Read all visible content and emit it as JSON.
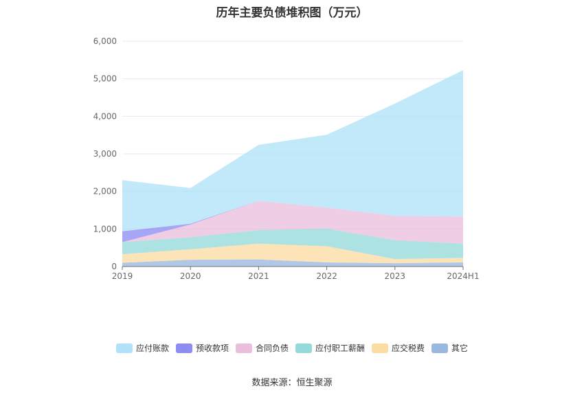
{
  "chart_data": {
    "type": "area",
    "title": "历年主要负债堆积图（万元）",
    "categories": [
      "2019",
      "2020",
      "2021",
      "2022",
      "2023",
      "2024H1"
    ],
    "ylim": [
      0,
      6000
    ],
    "yticks": [
      "0",
      "1,000",
      "2,000",
      "3,000",
      "4,000",
      "5,000",
      "6,000"
    ],
    "grid": true,
    "stacked": true,
    "legend_position": "bottom",
    "series": [
      {
        "name": "其它",
        "color": "#8fb0dc",
        "values": [
          100,
          180,
          190,
          110,
          90,
          110
        ]
      },
      {
        "name": "应交税费",
        "color": "#fbd99a",
        "values": [
          230,
          280,
          420,
          430,
          110,
          120
        ]
      },
      {
        "name": "应付职工薪酬",
        "color": "#8ad6d6",
        "values": [
          320,
          320,
          360,
          470,
          500,
          380
        ]
      },
      {
        "name": "合同负债",
        "color": "#e8b8d8",
        "values": [
          0,
          340,
          780,
          560,
          650,
          720
        ]
      },
      {
        "name": "预收款项",
        "color": "#8080f0",
        "values": [
          290,
          20,
          0,
          0,
          0,
          0
        ]
      },
      {
        "name": "应付账款",
        "color": "#a8dff8",
        "values": [
          1360,
          950,
          1490,
          1940,
          2990,
          3900
        ]
      }
    ],
    "legend_order": [
      "应付账款",
      "预收款项",
      "合同负债",
      "应付职工薪酬",
      "应交税费",
      "其它"
    ]
  },
  "source_text": "数据来源：恒生聚源"
}
